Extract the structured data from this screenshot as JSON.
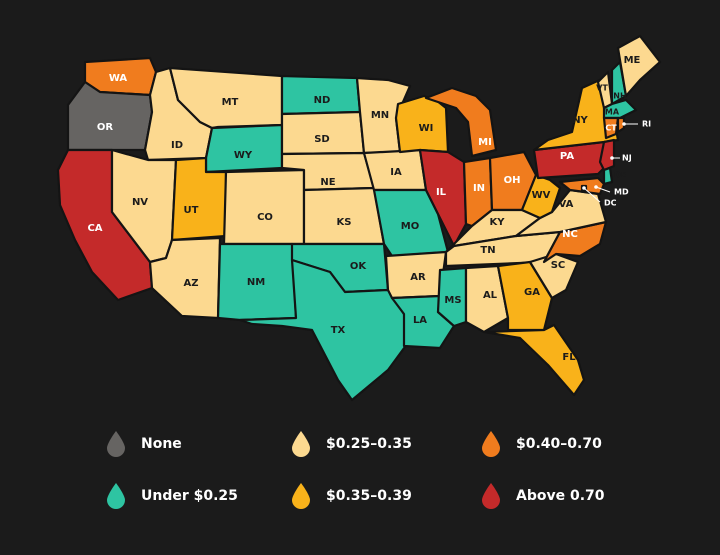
{
  "colors": {
    "none": "#666462",
    "under_025": "#2ec4a2",
    "r025_035": "#fcd990",
    "r035_039": "#f9b21a",
    "r040_070": "#f07c1e",
    "above_070": "#c42a2a"
  },
  "legend": [
    {
      "key": "none",
      "label": "None"
    },
    {
      "key": "r025_035",
      "label": "$0.25–0.35"
    },
    {
      "key": "r040_070",
      "label": "$0.40–0.70"
    },
    {
      "key": "under_025",
      "label": "Under $0.25"
    },
    {
      "key": "r035_039",
      "label": "$0.35–0.39"
    },
    {
      "key": "above_070",
      "label": "Above 0.70"
    }
  ],
  "states": [
    {
      "abbr": "WA",
      "cat": "r040_070"
    },
    {
      "abbr": "OR",
      "cat": "none"
    },
    {
      "abbr": "CA",
      "cat": "above_070"
    },
    {
      "abbr": "ID",
      "cat": "r025_035"
    },
    {
      "abbr": "NV",
      "cat": "r025_035"
    },
    {
      "abbr": "MT",
      "cat": "r025_035"
    },
    {
      "abbr": "WY",
      "cat": "under_025"
    },
    {
      "abbr": "UT",
      "cat": "r035_039"
    },
    {
      "abbr": "AZ",
      "cat": "r025_035"
    },
    {
      "abbr": "CO",
      "cat": "r025_035"
    },
    {
      "abbr": "NM",
      "cat": "under_025"
    },
    {
      "abbr": "ND",
      "cat": "under_025"
    },
    {
      "abbr": "SD",
      "cat": "r025_035"
    },
    {
      "abbr": "NE",
      "cat": "r025_035"
    },
    {
      "abbr": "KS",
      "cat": "r025_035"
    },
    {
      "abbr": "OK",
      "cat": "under_025"
    },
    {
      "abbr": "TX",
      "cat": "under_025"
    },
    {
      "abbr": "MN",
      "cat": "r025_035"
    },
    {
      "abbr": "IA",
      "cat": "r025_035"
    },
    {
      "abbr": "MO",
      "cat": "under_025"
    },
    {
      "abbr": "AR",
      "cat": "r025_035"
    },
    {
      "abbr": "LA",
      "cat": "under_025"
    },
    {
      "abbr": "WI",
      "cat": "r035_039"
    },
    {
      "abbr": "IL",
      "cat": "above_070"
    },
    {
      "abbr": "MI",
      "cat": "r040_070"
    },
    {
      "abbr": "IN",
      "cat": "r040_070"
    },
    {
      "abbr": "OH",
      "cat": "r040_070"
    },
    {
      "abbr": "KY",
      "cat": "r025_035"
    },
    {
      "abbr": "TN",
      "cat": "r025_035"
    },
    {
      "abbr": "MS",
      "cat": "under_025"
    },
    {
      "abbr": "AL",
      "cat": "r025_035"
    },
    {
      "abbr": "GA",
      "cat": "r035_039"
    },
    {
      "abbr": "FL",
      "cat": "r035_039"
    },
    {
      "abbr": "SC",
      "cat": "r025_035"
    },
    {
      "abbr": "NC",
      "cat": "r040_070"
    },
    {
      "abbr": "VA",
      "cat": "r025_035"
    },
    {
      "abbr": "WV",
      "cat": "r035_039"
    },
    {
      "abbr": "PA",
      "cat": "above_070"
    },
    {
      "abbr": "NY",
      "cat": "r035_039"
    },
    {
      "abbr": "VT",
      "cat": "r025_035"
    },
    {
      "abbr": "NH",
      "cat": "under_025"
    },
    {
      "abbr": "ME",
      "cat": "r025_035"
    },
    {
      "abbr": "MA",
      "cat": "under_025"
    },
    {
      "abbr": "CT",
      "cat": "r040_070"
    },
    {
      "abbr": "RI",
      "cat": "r040_070"
    },
    {
      "abbr": "NJ",
      "cat": "above_070"
    },
    {
      "abbr": "DE",
      "cat": "under_025"
    },
    {
      "abbr": "MD",
      "cat": "r040_070"
    },
    {
      "abbr": "DC",
      "cat": "none"
    }
  ]
}
